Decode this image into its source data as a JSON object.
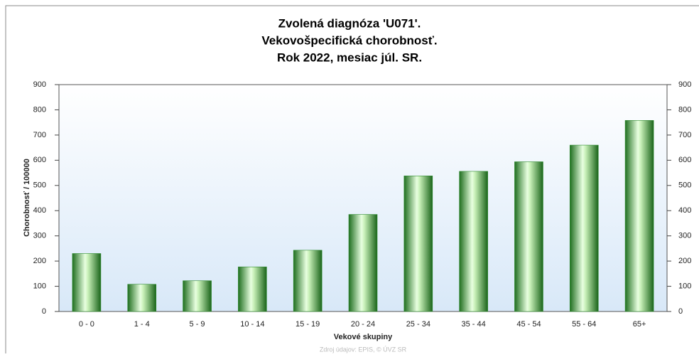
{
  "chart_data": {
    "type": "bar",
    "title": [
      "Zvolená diagnóza 'U071'.",
      "Vekovošpecifická chorobnosť.",
      "Rok 2022, mesiac júl. SR."
    ],
    "categories": [
      "0 - 0",
      "1 - 4",
      "5 - 9",
      "10 - 14",
      "15 - 19",
      "20 - 24",
      "25 - 34",
      "35 - 44",
      "45 - 54",
      "55 - 64",
      "65+"
    ],
    "values": [
      230,
      108,
      122,
      177,
      243,
      385,
      538,
      556,
      594,
      660,
      758
    ],
    "color": "#2e8b2e",
    "xlabel": "Vekové skupiny",
    "ylabel": "Chorobnosť / 100000",
    "ylim": [
      0,
      900
    ],
    "yticks": [
      0,
      100,
      200,
      300,
      400,
      500,
      600,
      700,
      800,
      900
    ],
    "y2lim": [
      0,
      900
    ],
    "y2ticks": [
      0,
      100,
      200,
      300,
      400,
      500,
      600,
      700,
      800,
      900
    ],
    "grid": false,
    "source": "Zdroj údajov: EPIS, © ÚVZ SR"
  }
}
